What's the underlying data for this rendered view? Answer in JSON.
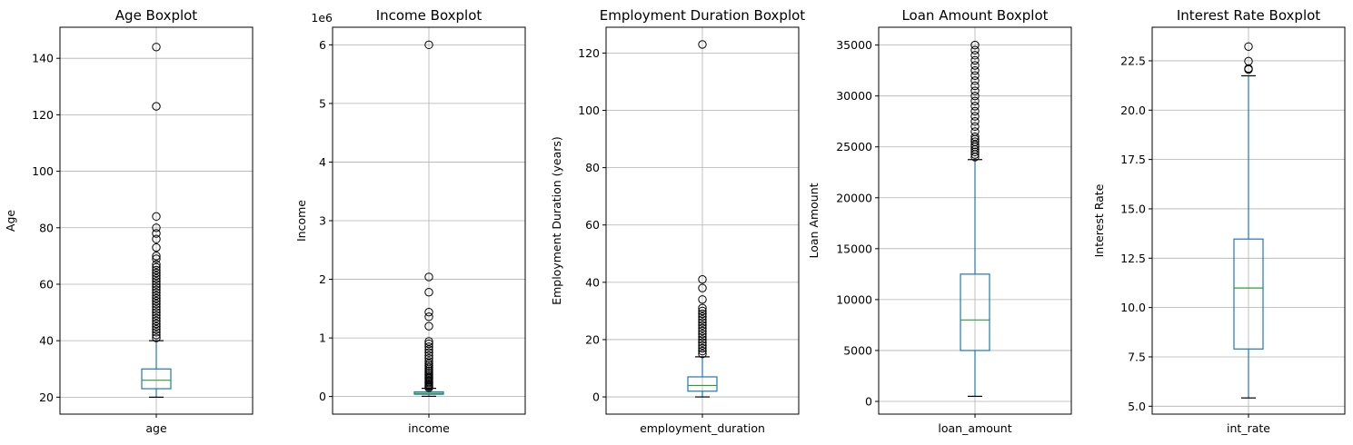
{
  "chart_data": [
    {
      "type": "boxplot",
      "title": "Age Boxplot",
      "ylabel": "Age",
      "category": "age",
      "ylim": [
        14,
        151
      ],
      "yticks": [
        20,
        40,
        60,
        80,
        100,
        120,
        140
      ],
      "ytick_labels": [
        "20",
        "40",
        "60",
        "80",
        "100",
        "120",
        "140"
      ],
      "offset_text": "",
      "box": {
        "whisker_low": 20,
        "q1": 23,
        "median": 26,
        "q3": 30,
        "whisker_high": 40
      },
      "outliers": [
        41,
        42,
        43,
        44,
        45,
        46,
        47,
        48,
        49,
        50,
        51,
        52,
        53,
        54,
        55,
        56,
        57,
        58,
        59,
        60,
        61,
        62,
        63,
        64,
        65,
        66,
        67,
        69,
        70,
        73,
        76,
        78,
        80,
        84,
        123,
        144
      ],
      "grid": true
    },
    {
      "type": "boxplot",
      "title": "Income Boxplot",
      "ylabel": "Income",
      "category": "income",
      "ylim": [
        -0.3,
        6.3
      ],
      "yticks": [
        0,
        1,
        2,
        3,
        4,
        5,
        6
      ],
      "ytick_labels": [
        "0",
        "1",
        "2",
        "3",
        "4",
        "5",
        "6"
      ],
      "offset_text": "1e6",
      "box": {
        "whisker_low": 0.004,
        "q1": 0.039,
        "median": 0.055,
        "q3": 0.08,
        "whisker_high": 0.14
      },
      "outliers": [
        0.15,
        0.17,
        0.19,
        0.21,
        0.23,
        0.25,
        0.27,
        0.29,
        0.31,
        0.33,
        0.35,
        0.38,
        0.41,
        0.44,
        0.47,
        0.5,
        0.53,
        0.56,
        0.6,
        0.65,
        0.7,
        0.75,
        0.8,
        0.85,
        0.9,
        0.94,
        1.2,
        1.36,
        1.44,
        1.78,
        2.04,
        6.0
      ],
      "grid": true
    },
    {
      "type": "boxplot",
      "title": "Employment Duration Boxplot",
      "ylabel": "Employment Duration (years)",
      "category": "employment_duration",
      "ylim": [
        -6,
        129
      ],
      "yticks": [
        0,
        20,
        40,
        60,
        80,
        100,
        120
      ],
      "ytick_labels": [
        "0",
        "20",
        "40",
        "60",
        "80",
        "100",
        "120"
      ],
      "offset_text": "",
      "box": {
        "whisker_low": 0,
        "q1": 2,
        "median": 4,
        "q3": 7,
        "whisker_high": 14
      },
      "outliers": [
        15,
        16,
        17,
        18,
        19,
        20,
        21,
        22,
        23,
        24,
        25,
        26,
        27,
        28,
        29,
        30,
        31,
        34,
        38,
        41,
        123
      ],
      "grid": true
    },
    {
      "type": "boxplot",
      "title": "Loan Amount Boxplot",
      "ylabel": "Loan Amount",
      "category": "loan_amount",
      "ylim": [
        -1250,
        36750
      ],
      "yticks": [
        0,
        5000,
        10000,
        15000,
        20000,
        25000,
        30000,
        35000
      ],
      "ytick_labels": [
        "0",
        "5000",
        "10000",
        "15000",
        "20000",
        "25000",
        "30000",
        "35000"
      ],
      "offset_text": "",
      "box": {
        "whisker_low": 500,
        "q1": 5000,
        "median": 8000,
        "q3": 12500,
        "whisker_high": 23750
      },
      "outliers": [
        24000,
        24250,
        24500,
        24750,
        25000,
        25200,
        25500,
        25750,
        26000,
        26500,
        27000,
        27500,
        28000,
        28500,
        29000,
        29500,
        30000,
        30500,
        31000,
        31500,
        32000,
        32500,
        33000,
        33500,
        34000,
        34500,
        35000
      ],
      "grid": true
    },
    {
      "type": "boxplot",
      "title": "Interest Rate Boxplot",
      "ylabel": "Interest Rate",
      "category": "int_rate",
      "ylim": [
        4.6,
        24.2
      ],
      "yticks": [
        5.0,
        7.5,
        10.0,
        12.5,
        15.0,
        17.5,
        20.0,
        22.5
      ],
      "ytick_labels": [
        "5.0",
        "7.5",
        "10.0",
        "12.5",
        "15.0",
        "17.5",
        "20.0",
        "22.5"
      ],
      "offset_text": "",
      "box": {
        "whisker_low": 5.42,
        "q1": 7.9,
        "median": 10.99,
        "q3": 13.47,
        "whisker_high": 21.74
      },
      "outliers": [
        22.06,
        22.11,
        22.48,
        23.22
      ],
      "grid": true
    }
  ],
  "colors": {
    "box": "#1f77b4",
    "median": "#2ca02c",
    "grid": "#b0b0b0",
    "axes": "#000000",
    "flier": "#000000"
  }
}
